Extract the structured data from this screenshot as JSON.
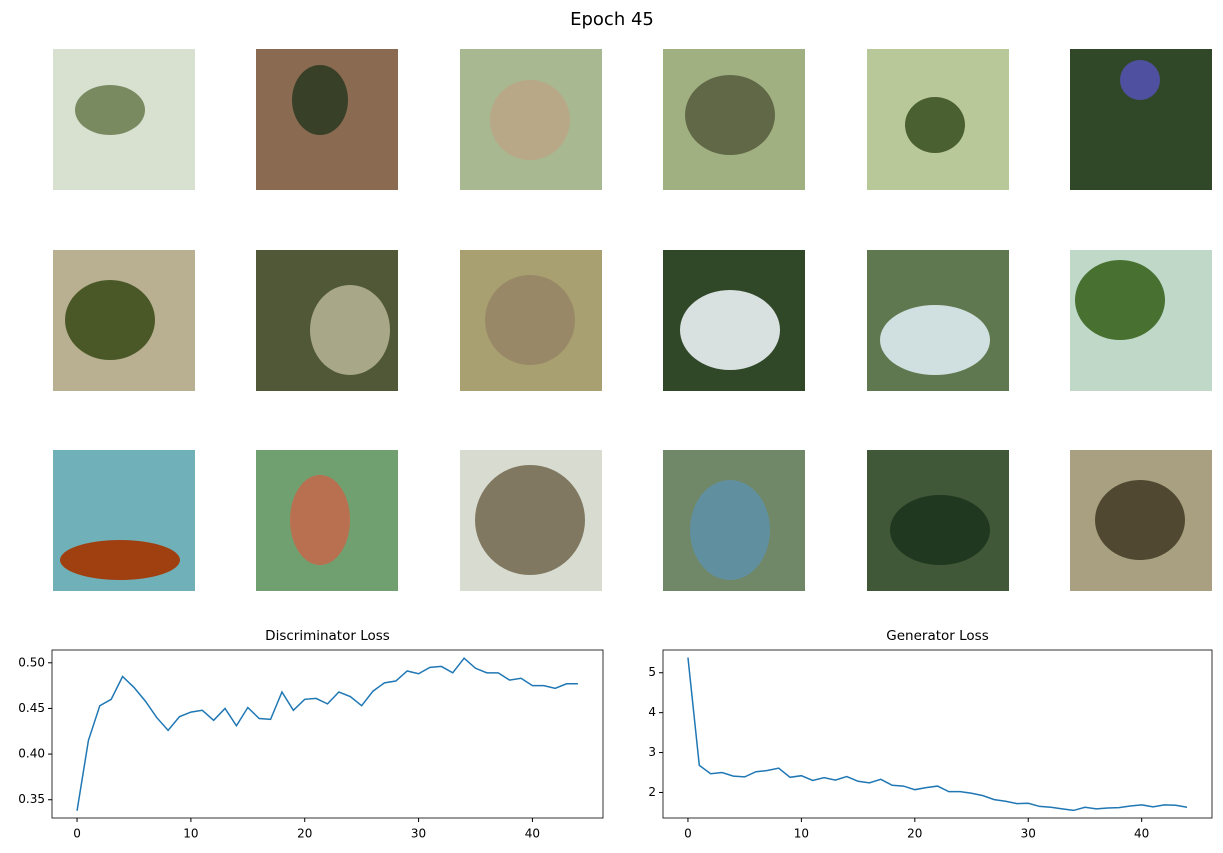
{
  "title": "Epoch 45",
  "chart_data": [
    {
      "type": "line",
      "title": "Discriminator Loss",
      "x": [
        0,
        1,
        2,
        3,
        4,
        5,
        6,
        7,
        8,
        9,
        10,
        11,
        12,
        13,
        14,
        15,
        16,
        17,
        18,
        19,
        20,
        21,
        22,
        23,
        24,
        25,
        26,
        27,
        28,
        29,
        30,
        31,
        32,
        33,
        34,
        35,
        36,
        37,
        38,
        39,
        40,
        41,
        42,
        43,
        44
      ],
      "series": [
        {
          "name": "Discriminator Loss",
          "color": "#1f77b4",
          "values": [
            0.338,
            0.415,
            0.453,
            0.46,
            0.485,
            0.473,
            0.458,
            0.44,
            0.426,
            0.441,
            0.446,
            0.448,
            0.437,
            0.45,
            0.431,
            0.451,
            0.439,
            0.438,
            0.468,
            0.448,
            0.46,
            0.461,
            0.455,
            0.468,
            0.463,
            0.453,
            0.469,
            0.478,
            0.48,
            0.491,
            0.488,
            0.495,
            0.496,
            0.489,
            0.505,
            0.494,
            0.489,
            0.489,
            0.481,
            0.483,
            0.475,
            0.475,
            0.472,
            0.477,
            0.477
          ]
        }
      ],
      "xlim": [
        -2.2,
        46.2
      ],
      "xticks": [
        0,
        10,
        20,
        30,
        40
      ],
      "ylim": [
        0.33,
        0.514
      ],
      "yticks": [
        0.35,
        {
          "value": 0.4,
          "label": "0.40"
        },
        0.45,
        {
          "value": 0.5,
          "label": "0.50"
        }
      ],
      "grid": false
    },
    {
      "type": "line",
      "title": "Generator Loss",
      "x": [
        0,
        1,
        2,
        3,
        4,
        5,
        6,
        7,
        8,
        9,
        10,
        11,
        12,
        13,
        14,
        15,
        16,
        17,
        18,
        19,
        20,
        21,
        22,
        23,
        24,
        25,
        26,
        27,
        28,
        29,
        30,
        31,
        32,
        33,
        34,
        35,
        36,
        37,
        38,
        39,
        40,
        41,
        42,
        43,
        44
      ],
      "series": [
        {
          "name": "Generator Loss",
          "color": "#1f77b4",
          "values": [
            5.38,
            2.68,
            2.47,
            2.5,
            2.41,
            2.39,
            2.52,
            2.55,
            2.61,
            2.38,
            2.42,
            2.3,
            2.37,
            2.31,
            2.4,
            2.28,
            2.24,
            2.33,
            2.18,
            2.16,
            2.07,
            2.12,
            2.16,
            2.02,
            2.02,
            1.98,
            1.92,
            1.82,
            1.78,
            1.72,
            1.73,
            1.65,
            1.63,
            1.59,
            1.55,
            1.63,
            1.59,
            1.61,
            1.62,
            1.66,
            1.69,
            1.64,
            1.69,
            1.68,
            1.63
          ]
        }
      ],
      "xlim": [
        -2.2,
        46.2
      ],
      "xticks": [
        0,
        10,
        20,
        30,
        40
      ],
      "ylim": [
        1.36,
        5.57
      ],
      "yticks": [
        2,
        3,
        4,
        5
      ],
      "grid": false
    }
  ]
}
